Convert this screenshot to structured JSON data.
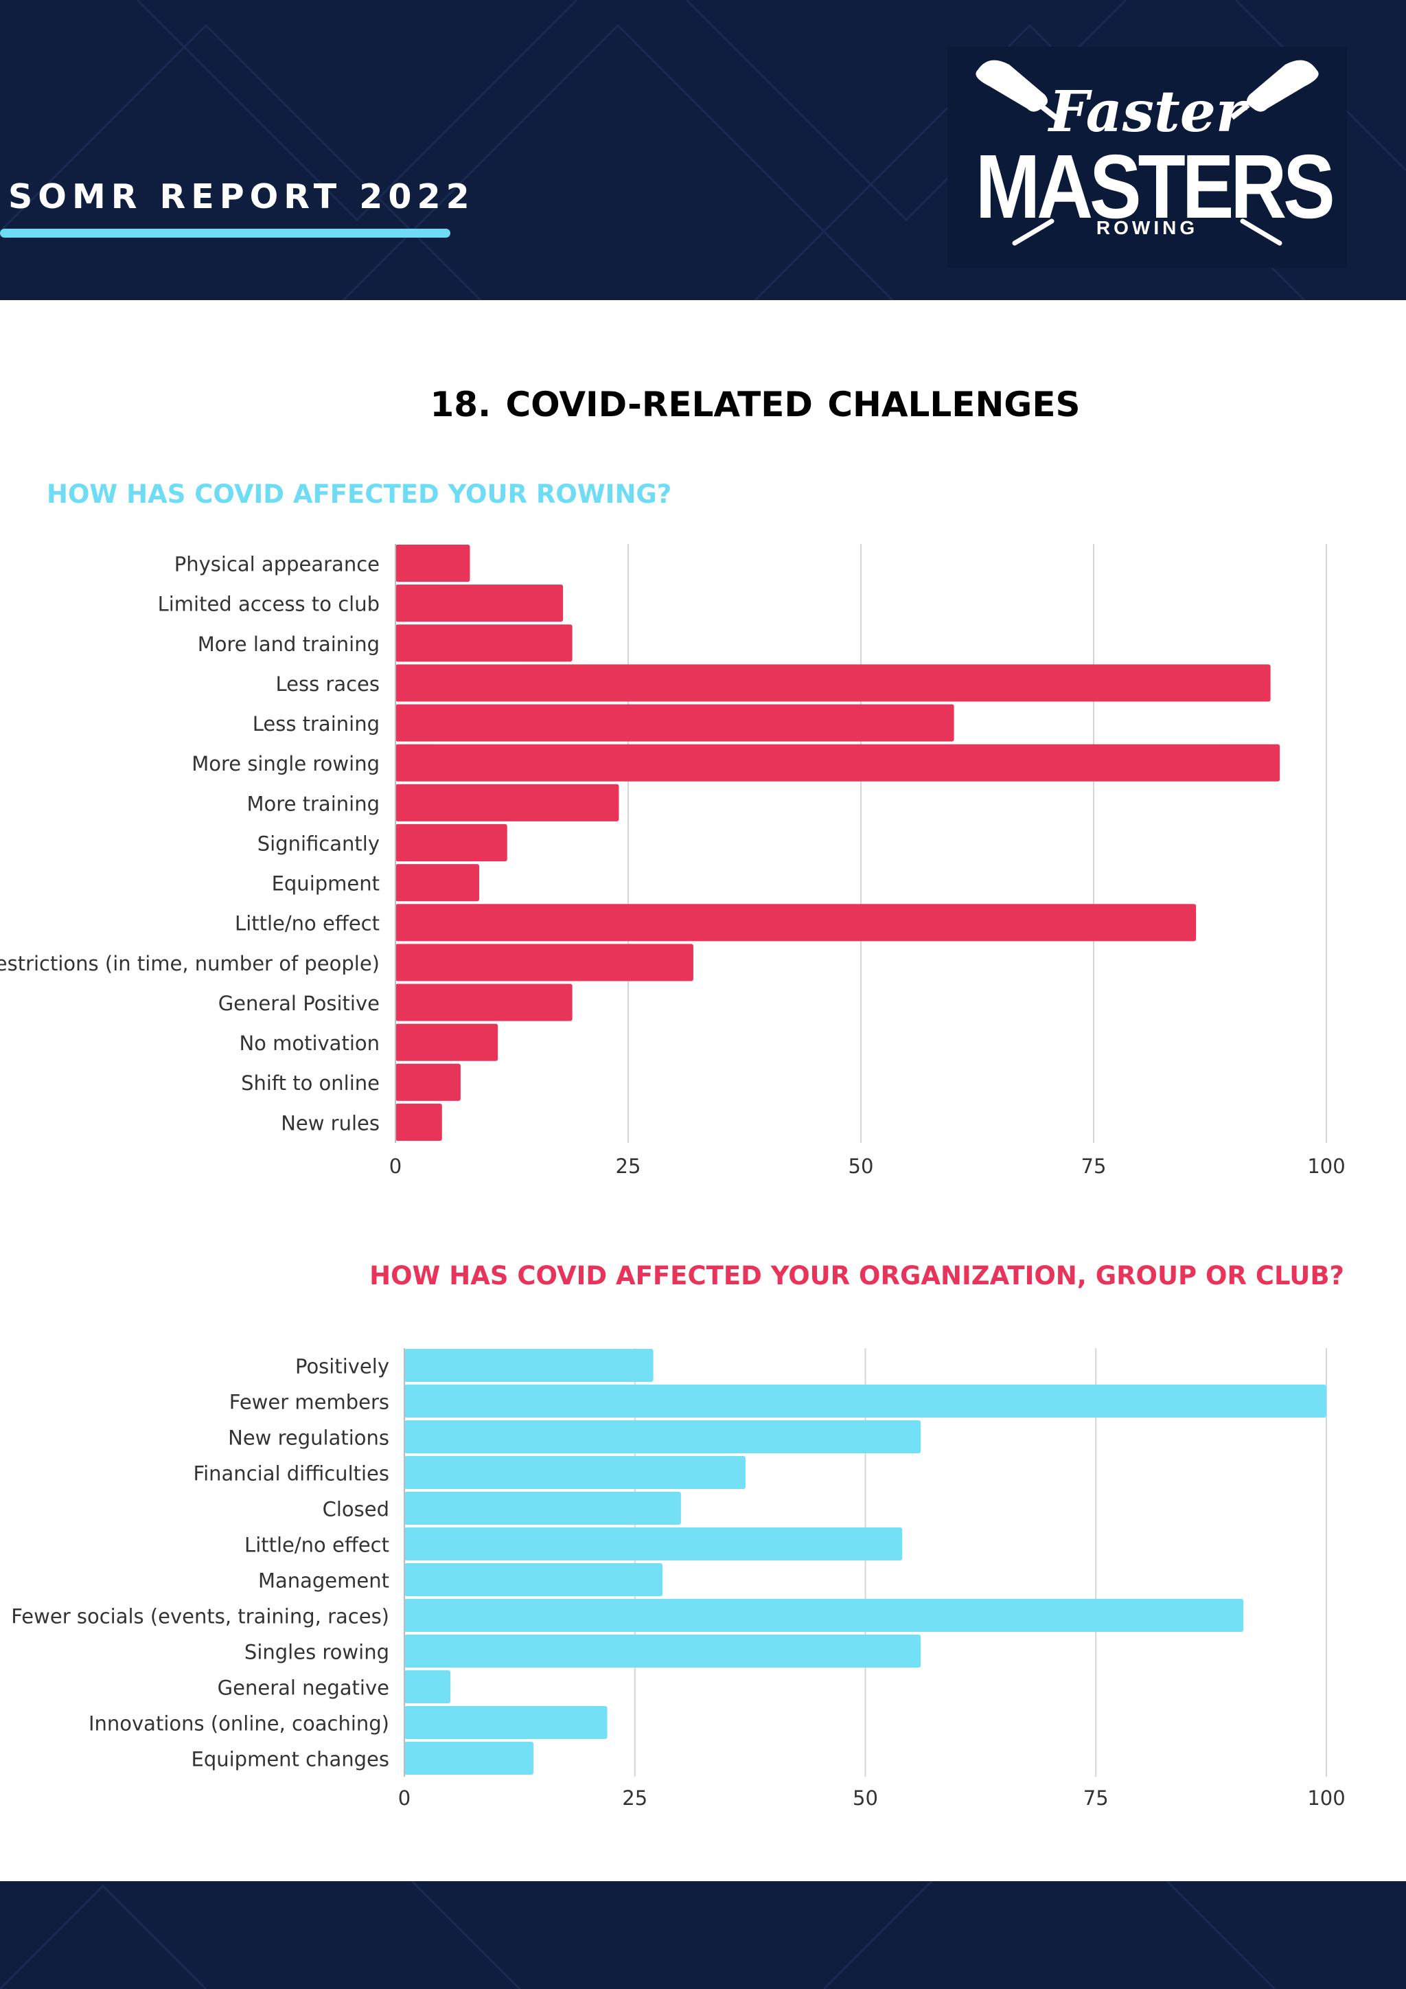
{
  "header": {
    "report_title": "SOMR REPORT 2022",
    "logo": {
      "script_text": "Faster",
      "main_text": "MASTERS",
      "sub_text": "ROWING"
    }
  },
  "section": {
    "title": "18.  COVID-RELATED CHALLENGES"
  },
  "colors": {
    "navy": "#0f1d3f",
    "accent_blue": "#6fdcf5",
    "accent_red": "#e8345a",
    "bar_red": "#e9345a",
    "bar_blue": "#74e0f6"
  },
  "chart_data": [
    {
      "type": "bar",
      "orientation": "horizontal",
      "title": "HOW HAS COVID AFFECTED YOUR ROWING?",
      "categories": [
        "Physical appearance",
        "Limited access to club",
        "More land training",
        "Less races",
        "Less training",
        "More single rowing",
        "More training",
        "Significantly",
        "Equipment",
        "Little/no effect",
        "Restrictions (in time, number of people)",
        "General Positive",
        "No motivation",
        "Shift to online",
        "New rules"
      ],
      "values": [
        8,
        18,
        19,
        94,
        60,
        95,
        24,
        12,
        9,
        86,
        32,
        19,
        11,
        7,
        5
      ],
      "xlim": [
        0,
        100
      ],
      "xticks": [
        "0",
        "25",
        "50",
        "75",
        "100"
      ],
      "grid": true,
      "xlabel": "",
      "ylabel": ""
    },
    {
      "type": "bar",
      "orientation": "horizontal",
      "title": "HOW HAS COVID AFFECTED YOUR ORGANIZATION, GROUP OR CLUB?",
      "categories": [
        "Positively",
        "Fewer members",
        "New regulations",
        "Financial difficulties",
        "Closed",
        "Little/no effect",
        "Management",
        "Fewer socials (events, training, races)",
        "Singles rowing",
        "General negative",
        "Innovations (online, coaching)",
        "Equipment changes"
      ],
      "values": [
        27,
        100,
        56,
        37,
        30,
        54,
        28,
        91,
        56,
        5,
        22,
        14
      ],
      "xlim": [
        0,
        100
      ],
      "xticks": [
        "0",
        "25",
        "50",
        "75",
        "100"
      ],
      "grid": true,
      "xlabel": "",
      "ylabel": ""
    }
  ]
}
